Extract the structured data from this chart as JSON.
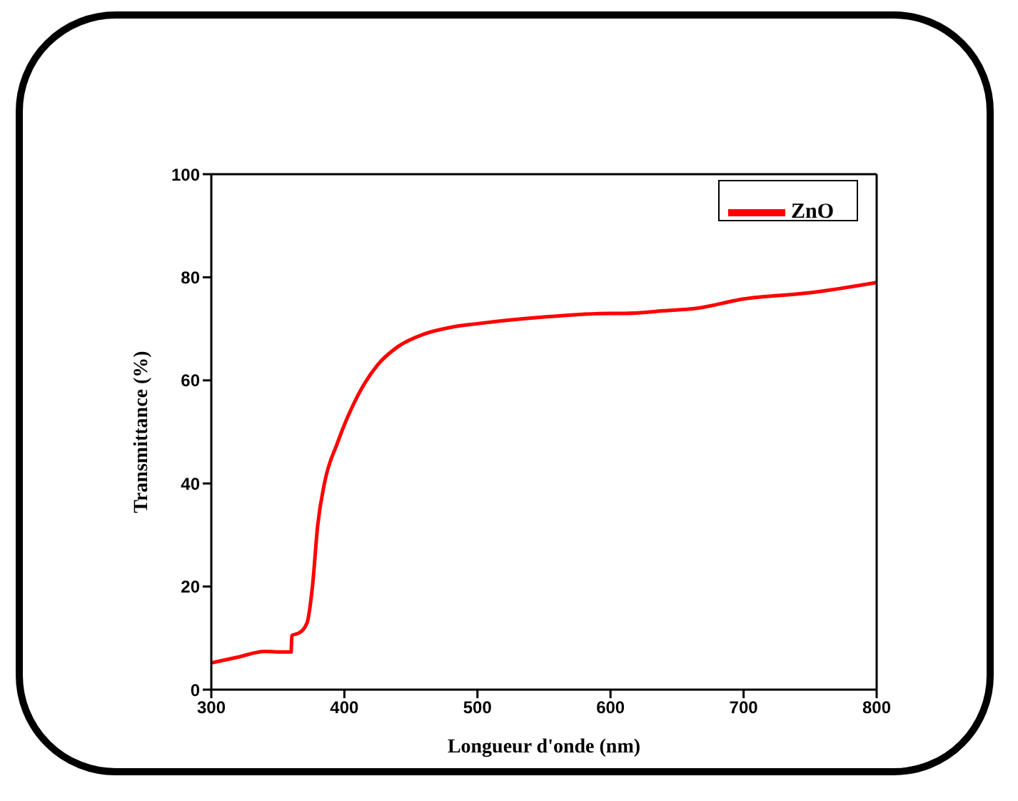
{
  "chart_data": {
    "type": "line",
    "xlabel": "Longueur d'onde (nm)",
    "ylabel": "Transmittance (%)",
    "x": [
      300,
      320,
      340,
      355,
      360,
      360.5,
      366,
      372,
      376,
      380,
      385,
      395,
      410,
      425,
      440,
      460,
      480,
      500,
      550,
      600,
      610,
      640,
      665,
      700,
      750,
      800
    ],
    "series": [
      {
        "name": "ZnO",
        "color": "#ff0000",
        "values": [
          5.2,
          6.3,
          7.4,
          7.3,
          7.3,
          10.5,
          11,
          13,
          20,
          32,
          40,
          48,
          57,
          63,
          66.5,
          69,
          70.3,
          71,
          72.3,
          73,
          73,
          73.5,
          74,
          75.8,
          77,
          79
        ]
      }
    ],
    "xlim": [
      300,
      800
    ],
    "xticks": [
      300,
      400,
      500,
      600,
      700,
      800
    ],
    "ylim": [
      0,
      100
    ],
    "yticks": [
      0,
      20,
      40,
      60,
      80,
      100
    ],
    "grid": false,
    "legend": "top right",
    "marker": "none",
    "line_style": "solid"
  }
}
